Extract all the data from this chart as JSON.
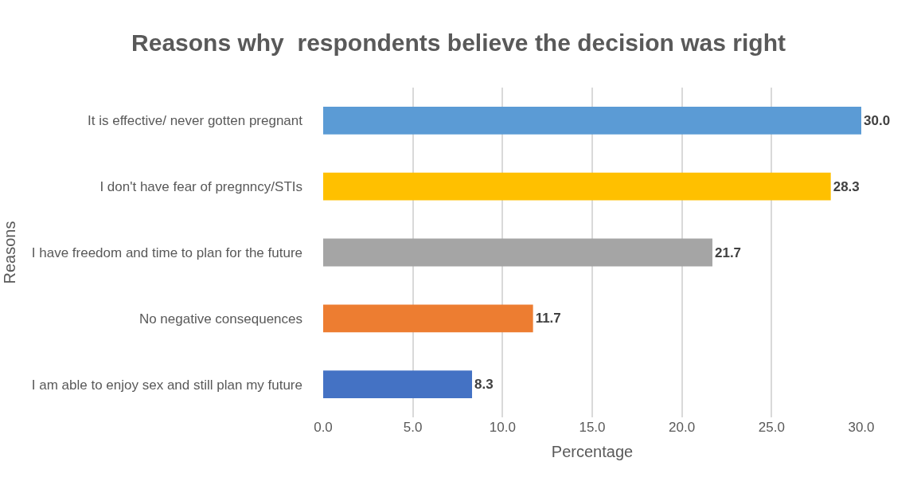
{
  "chart_data": {
    "type": "bar",
    "orientation": "horizontal",
    "title": "Reasons why  respondents believe the decision was right",
    "xlabel": "Percentage",
    "ylabel": "Reasons",
    "categories": [
      "It is effective/ never gotten pregnant",
      "I don't have fear of pregnncy/STIs",
      "I have freedom and time to plan for the future",
      "No negative consequences",
      "I am able to enjoy sex and still plan my future"
    ],
    "values": [
      30.0,
      28.3,
      21.7,
      11.7,
      8.3
    ],
    "colors": [
      "#5b9bd5",
      "#ffc000",
      "#a5a5a5",
      "#ed7d31",
      "#4472c4"
    ],
    "value_labels": [
      "30.0",
      "28.3",
      "21.7",
      "11.7",
      "8.3"
    ],
    "xlim": [
      0,
      30
    ],
    "xticks": [
      {
        "value": 0,
        "label": "0.0"
      },
      {
        "value": 5,
        "label": "5.0"
      },
      {
        "value": 10,
        "label": "10.0"
      },
      {
        "value": 15,
        "label": "15.0"
      },
      {
        "value": 20,
        "label": "20.0"
      },
      {
        "value": 25,
        "label": "25.0"
      },
      {
        "value": 30,
        "label": "30.0"
      }
    ],
    "grid": "x"
  }
}
